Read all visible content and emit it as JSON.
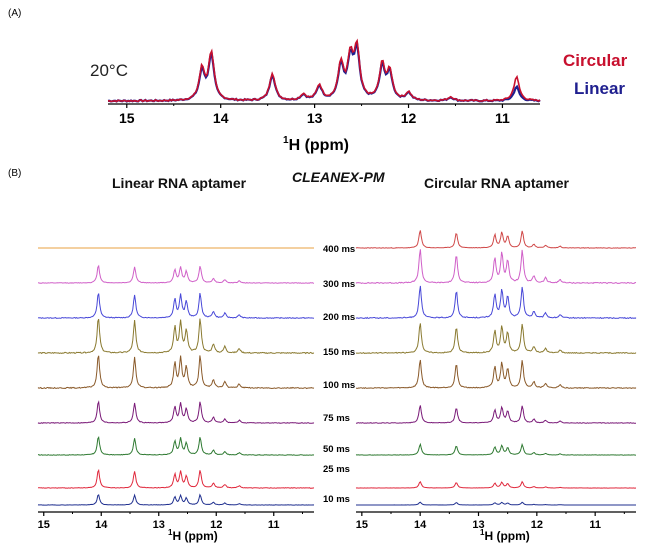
{
  "figure": {
    "panel_a_label": "(A)",
    "panel_b_label": "(B)",
    "temperature": "20°C",
    "legend_circular": "Circular",
    "legend_linear": "Linear",
    "linear_title": "Linear RNA aptamer",
    "method_title": "CLEANEX-PM",
    "circular_title": "Circular RNA aptamer"
  },
  "colors": {
    "circular": "#c8102e",
    "linear": "#1f1f8f",
    "t400": "#e8a040",
    "t300": "#d060c8",
    "t200": "#4848d8",
    "t150": "#8a7a30",
    "t100": "#8a5a2a",
    "t75": "#7a1a78",
    "t50": "#2f7a32",
    "t25": "#e0283c",
    "t10": "#1f2f8f",
    "circ400": "#d04848",
    "axis": "#000000"
  },
  "chart_data": [
    {
      "type": "line",
      "panel": "A",
      "xlabel_sup": "1",
      "xlabel": "H (ppm)",
      "xlim": [
        15.2,
        10.6
      ],
      "xticks": [
        15,
        14,
        13,
        12,
        11
      ],
      "xtick_labels": [
        "15",
        "14",
        "13",
        "12",
        "11"
      ],
      "series": [
        {
          "name": "Circular",
          "peaks": [
            [
              14.2,
              0.62
            ],
            [
              14.1,
              0.95
            ],
            [
              13.45,
              0.55
            ],
            [
              13.12,
              0.12
            ],
            [
              12.95,
              0.3
            ],
            [
              12.72,
              0.72
            ],
            [
              12.62,
              0.8
            ],
            [
              12.55,
              1.0
            ],
            [
              12.28,
              0.7
            ],
            [
              12.2,
              0.55
            ],
            [
              12.0,
              0.16
            ],
            [
              11.55,
              0.08
            ],
            [
              10.85,
              0.48
            ]
          ]
        },
        {
          "name": "Linear",
          "peaks": [
            [
              14.2,
              0.58
            ],
            [
              14.1,
              0.9
            ],
            [
              13.45,
              0.52
            ],
            [
              13.12,
              0.11
            ],
            [
              12.95,
              0.28
            ],
            [
              12.72,
              0.68
            ],
            [
              12.62,
              0.76
            ],
            [
              12.55,
              0.95
            ],
            [
              12.28,
              0.66
            ],
            [
              12.2,
              0.52
            ],
            [
              12.0,
              0.15
            ],
            [
              11.55,
              0.07
            ],
            [
              10.85,
              0.28
            ]
          ]
        }
      ]
    },
    {
      "type": "line",
      "panel": "B-left",
      "title": "Linear RNA aptamer",
      "xlabel_sup": "1",
      "xlabel": "H (ppm)",
      "xlim": [
        15.1,
        10.3
      ],
      "xticks": [
        15,
        14,
        13,
        12,
        11
      ],
      "xtick_labels": [
        "15",
        "14",
        "13",
        "12",
        "11"
      ],
      "series": [
        {
          "name": "400 ms",
          "scale": 0.0
        },
        {
          "name": "300 ms",
          "scale": 0.5
        },
        {
          "name": "200 ms",
          "scale": 0.72
        },
        {
          "name": "150 ms",
          "scale": 1.0
        },
        {
          "name": "100 ms",
          "scale": 0.95
        },
        {
          "name": "75 ms",
          "scale": 0.62
        },
        {
          "name": "50 ms",
          "scale": 0.52
        },
        {
          "name": "25 ms",
          "scale": 0.52
        },
        {
          "name": "10 ms",
          "scale": 0.3
        }
      ],
      "peaks": [
        [
          14.05,
          1.0
        ],
        [
          13.42,
          0.9
        ],
        [
          12.72,
          0.72
        ],
        [
          12.62,
          0.85
        ],
        [
          12.52,
          0.62
        ],
        [
          12.28,
          0.95
        ],
        [
          12.05,
          0.25
        ],
        [
          11.85,
          0.18
        ],
        [
          11.6,
          0.12
        ]
      ]
    },
    {
      "type": "line",
      "panel": "B-right",
      "title": "Circular RNA aptamer",
      "xlabel_sup": "1",
      "xlabel": "H (ppm)",
      "xlim": [
        15.1,
        10.3
      ],
      "xticks": [
        15,
        14,
        13,
        12,
        11
      ],
      "xtick_labels": [
        "15",
        "14",
        "13",
        "12",
        "11"
      ],
      "series": [
        {
          "name": "400 ms",
          "scale": 0.5
        },
        {
          "name": "300 ms",
          "scale": 0.95
        },
        {
          "name": "200 ms",
          "scale": 0.9
        },
        {
          "name": "150 ms",
          "scale": 0.85
        },
        {
          "name": "100 ms",
          "scale": 0.8
        },
        {
          "name": "75 ms",
          "scale": 0.5
        },
        {
          "name": "50 ms",
          "scale": 0.3
        },
        {
          "name": "25 ms",
          "scale": 0.18
        },
        {
          "name": "10 ms",
          "scale": 0.08
        }
      ],
      "peaks": [
        [
          14.0,
          1.0
        ],
        [
          13.38,
          0.85
        ],
        [
          12.72,
          0.72
        ],
        [
          12.6,
          0.85
        ],
        [
          12.5,
          0.65
        ],
        [
          12.25,
          0.95
        ],
        [
          12.05,
          0.2
        ],
        [
          11.85,
          0.15
        ],
        [
          11.6,
          0.1
        ]
      ]
    }
  ]
}
